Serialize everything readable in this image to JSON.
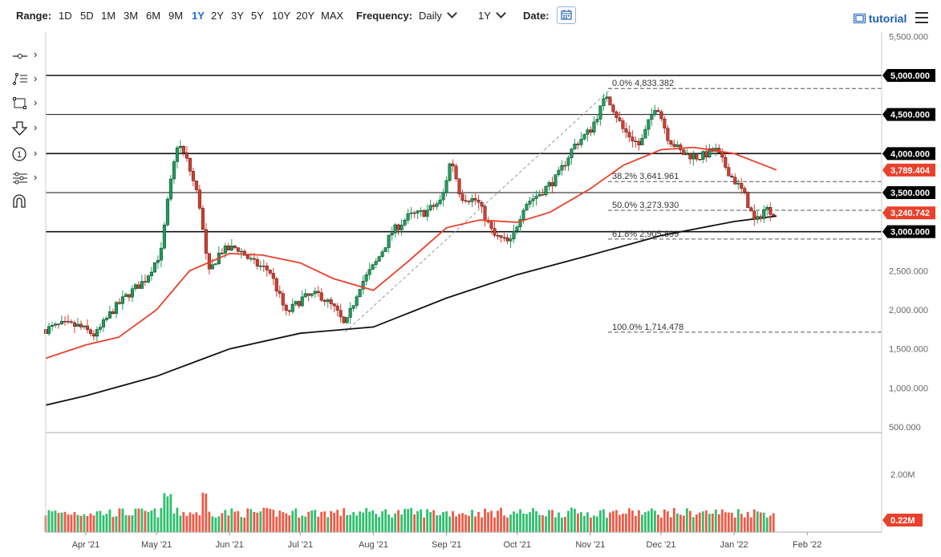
{
  "toolbar": {
    "range_label": "Range:",
    "ranges": [
      "1D",
      "5D",
      "1M",
      "3M",
      "6M",
      "9M",
      "1Y",
      "2Y",
      "3Y",
      "5Y",
      "10Y",
      "20Y",
      "MAX"
    ],
    "active_range": "1Y",
    "frequency_label": "Frequency:",
    "frequency_value": "Daily",
    "period_value": "1Y",
    "date_label": "Date:",
    "tutorial_label": "tutorial"
  },
  "icons": [
    "crosshair-icon",
    "draw-line-icon",
    "rectangle-icon",
    "arrow-down-icon",
    "annotation-number-icon",
    "indicator-icon",
    "magnet-icon",
    "calendar-icon",
    "film-icon",
    "menu-icon"
  ],
  "colors": {
    "up_candle": "#1aa05a",
    "down_candle": "#d93a2b",
    "ma_fast": "#e8412c",
    "ma_slow": "#111111",
    "fib": "#555555",
    "badge_black": "#000000",
    "badge_red": "#e8412c"
  },
  "chart_data": [
    {
      "type": "candlestick",
      "y_ticks": [
        "5,500.000",
        "5,000.000",
        "4,500.000",
        "4,000.000",
        "3,500.000",
        "3,000.000",
        "2,500.000",
        "2,000.000",
        "1,500.000",
        "1,000.000",
        "500.000"
      ],
      "ylim": [
        500,
        5500
      ],
      "x_ticks": [
        "Apr '21",
        "May '21",
        "Jun '21",
        "Jul '21",
        "Aug '21",
        "Sep '21",
        "Oct '21",
        "Nov '21",
        "Dec '21",
        "Jan '22",
        "Feb '22"
      ],
      "horizontal_levels": [
        5000,
        4500,
        4000,
        3500,
        3000
      ],
      "price_badges": [
        {
          "value": 5000,
          "label": "5,000.000",
          "style": "black"
        },
        {
          "value": 4500,
          "label": "4,500.000",
          "style": "black"
        },
        {
          "value": 4000,
          "label": "4,000.000",
          "style": "black"
        },
        {
          "value": 3789.404,
          "label": "3,789.404",
          "style": "red"
        },
        {
          "value": 3500,
          "label": "3,500.000",
          "style": "black"
        },
        {
          "value": 3240.742,
          "label": "3,240.742",
          "style": "red"
        },
        {
          "value": 3000,
          "label": "3,000.000",
          "style": "black"
        }
      ],
      "fibonacci": [
        {
          "value": 4833.382,
          "label": "0.0% 4,833.382"
        },
        {
          "value": 3641.961,
          "label": "38.2% 3,641.961"
        },
        {
          "value": 3273.93,
          "label": "50.0% 3,273.930"
        },
        {
          "value": 2905.899,
          "label": "61.8% 2,905.899"
        },
        {
          "value": 1714.478,
          "label": "100.0% 1,714.478"
        }
      ],
      "price_path": [
        [
          "2021-03-15",
          1750
        ],
        [
          "2021-03-22",
          1810
        ],
        [
          "2021-03-29",
          1790
        ],
        [
          "2021-04-05",
          1670
        ],
        [
          "2021-04-12",
          1980
        ],
        [
          "2021-04-19",
          2200
        ],
        [
          "2021-04-26",
          2380
        ],
        [
          "2021-05-03",
          2750
        ],
        [
          "2021-05-06",
          3450
        ],
        [
          "2021-05-10",
          4150
        ],
        [
          "2021-05-14",
          3900
        ],
        [
          "2021-05-19",
          3400
        ],
        [
          "2021-05-23",
          2450
        ],
        [
          "2021-05-28",
          2750
        ],
        [
          "2021-06-04",
          2800
        ],
        [
          "2021-06-11",
          2600
        ],
        [
          "2021-06-18",
          2500
        ],
        [
          "2021-06-25",
          1950
        ],
        [
          "2021-07-02",
          2150
        ],
        [
          "2021-07-09",
          2200
        ],
        [
          "2021-07-16",
          2000
        ],
        [
          "2021-07-20",
          1780
        ],
        [
          "2021-07-26",
          2300
        ],
        [
          "2021-08-02",
          2600
        ],
        [
          "2021-08-09",
          3000
        ],
        [
          "2021-08-16",
          3200
        ],
        [
          "2021-08-23",
          3250
        ],
        [
          "2021-08-30",
          3400
        ],
        [
          "2021-09-03",
          3950
        ],
        [
          "2021-09-07",
          3450
        ],
        [
          "2021-09-14",
          3400
        ],
        [
          "2021-09-21",
          2950
        ],
        [
          "2021-09-28",
          2850
        ],
        [
          "2021-10-04",
          3350
        ],
        [
          "2021-10-11",
          3500
        ],
        [
          "2021-10-18",
          3700
        ],
        [
          "2021-10-25",
          4100
        ],
        [
          "2021-11-01",
          4300
        ],
        [
          "2021-11-08",
          4750
        ],
        [
          "2021-11-15",
          4300
        ],
        [
          "2021-11-22",
          4100
        ],
        [
          "2021-11-29",
          4650
        ],
        [
          "2021-12-04",
          4200
        ],
        [
          "2021-12-10",
          4000
        ],
        [
          "2021-12-17",
          3950
        ],
        [
          "2021-12-24",
          4050
        ],
        [
          "2021-12-31",
          3700
        ],
        [
          "2022-01-05",
          3500
        ],
        [
          "2022-01-10",
          3100
        ],
        [
          "2022-01-14",
          3300
        ],
        [
          "2022-01-19",
          3240.742
        ]
      ],
      "ma_fast_path": [
        [
          "2021-03-15",
          1380
        ],
        [
          "2021-04-01",
          1550
        ],
        [
          "2021-04-15",
          1650
        ],
        [
          "2021-05-01",
          2000
        ],
        [
          "2021-05-15",
          2500
        ],
        [
          "2021-06-01",
          2720
        ],
        [
          "2021-06-15",
          2700
        ],
        [
          "2021-07-01",
          2600
        ],
        [
          "2021-07-15",
          2400
        ],
        [
          "2021-08-01",
          2250
        ],
        [
          "2021-08-15",
          2600
        ],
        [
          "2021-09-01",
          3050
        ],
        [
          "2021-09-15",
          3150
        ],
        [
          "2021-10-01",
          3120
        ],
        [
          "2021-10-15",
          3250
        ],
        [
          "2021-11-01",
          3550
        ],
        [
          "2021-11-15",
          3850
        ],
        [
          "2021-12-01",
          4050
        ],
        [
          "2021-12-15",
          4080
        ],
        [
          "2022-01-01",
          4000
        ],
        [
          "2022-01-19",
          3789.404
        ]
      ],
      "ma_slow_path": [
        [
          "2021-03-15",
          780
        ],
        [
          "2021-04-01",
          900
        ],
        [
          "2021-05-01",
          1150
        ],
        [
          "2021-06-01",
          1500
        ],
        [
          "2021-07-01",
          1700
        ],
        [
          "2021-08-01",
          1780
        ],
        [
          "2021-09-01",
          2150
        ],
        [
          "2021-10-01",
          2450
        ],
        [
          "2021-11-01",
          2700
        ],
        [
          "2021-12-01",
          2950
        ],
        [
          "2022-01-01",
          3130
        ],
        [
          "2022-01-19",
          3200
        ]
      ]
    },
    {
      "type": "bar",
      "name": "volume",
      "y_ticks": [
        "2.00M"
      ],
      "last_badge": "0.22M",
      "ylim": [
        0,
        3.4
      ],
      "avg_level": 0.5
    }
  ]
}
